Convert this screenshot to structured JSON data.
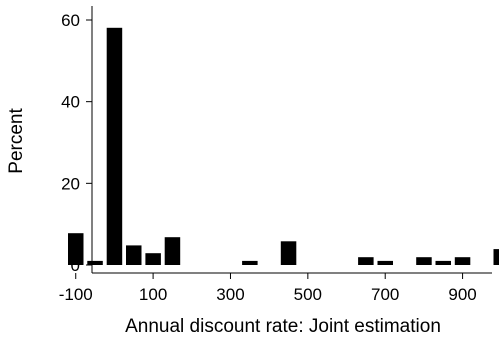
{
  "chart_data": {
    "type": "bar",
    "title": "",
    "xlabel": "Annual discount rate: Joint estimation",
    "ylabel": "Percent",
    "xlim": [
      -120,
      1020
    ],
    "ylim": [
      0,
      62
    ],
    "xticks": [
      -100,
      100,
      300,
      500,
      700,
      900
    ],
    "xtick_labels": [
      "-100",
      "100",
      "300",
      "500",
      "700",
      "900"
    ],
    "yticks": [
      0,
      20,
      40,
      60
    ],
    "ytick_labels": [
      "0",
      "20",
      "40",
      "60"
    ],
    "bin_width": 40,
    "bins": [
      {
        "x": -100,
        "value": 7.8
      },
      {
        "x": -50,
        "value": 1.0
      },
      {
        "x": 0,
        "value": 58.1
      },
      {
        "x": 50,
        "value": 4.8
      },
      {
        "x": 100,
        "value": 2.9
      },
      {
        "x": 150,
        "value": 6.8
      },
      {
        "x": 350,
        "value": 1.0
      },
      {
        "x": 450,
        "value": 5.8
      },
      {
        "x": 650,
        "value": 1.9
      },
      {
        "x": 700,
        "value": 1.0
      },
      {
        "x": 800,
        "value": 1.9
      },
      {
        "x": 850,
        "value": 1.0
      },
      {
        "x": 900,
        "value": 1.9
      },
      {
        "x": 1000,
        "value": 3.9
      }
    ],
    "grid": false,
    "colors": {
      "bar": "#000000",
      "axis": "#000000",
      "background": "#ffffff"
    }
  }
}
